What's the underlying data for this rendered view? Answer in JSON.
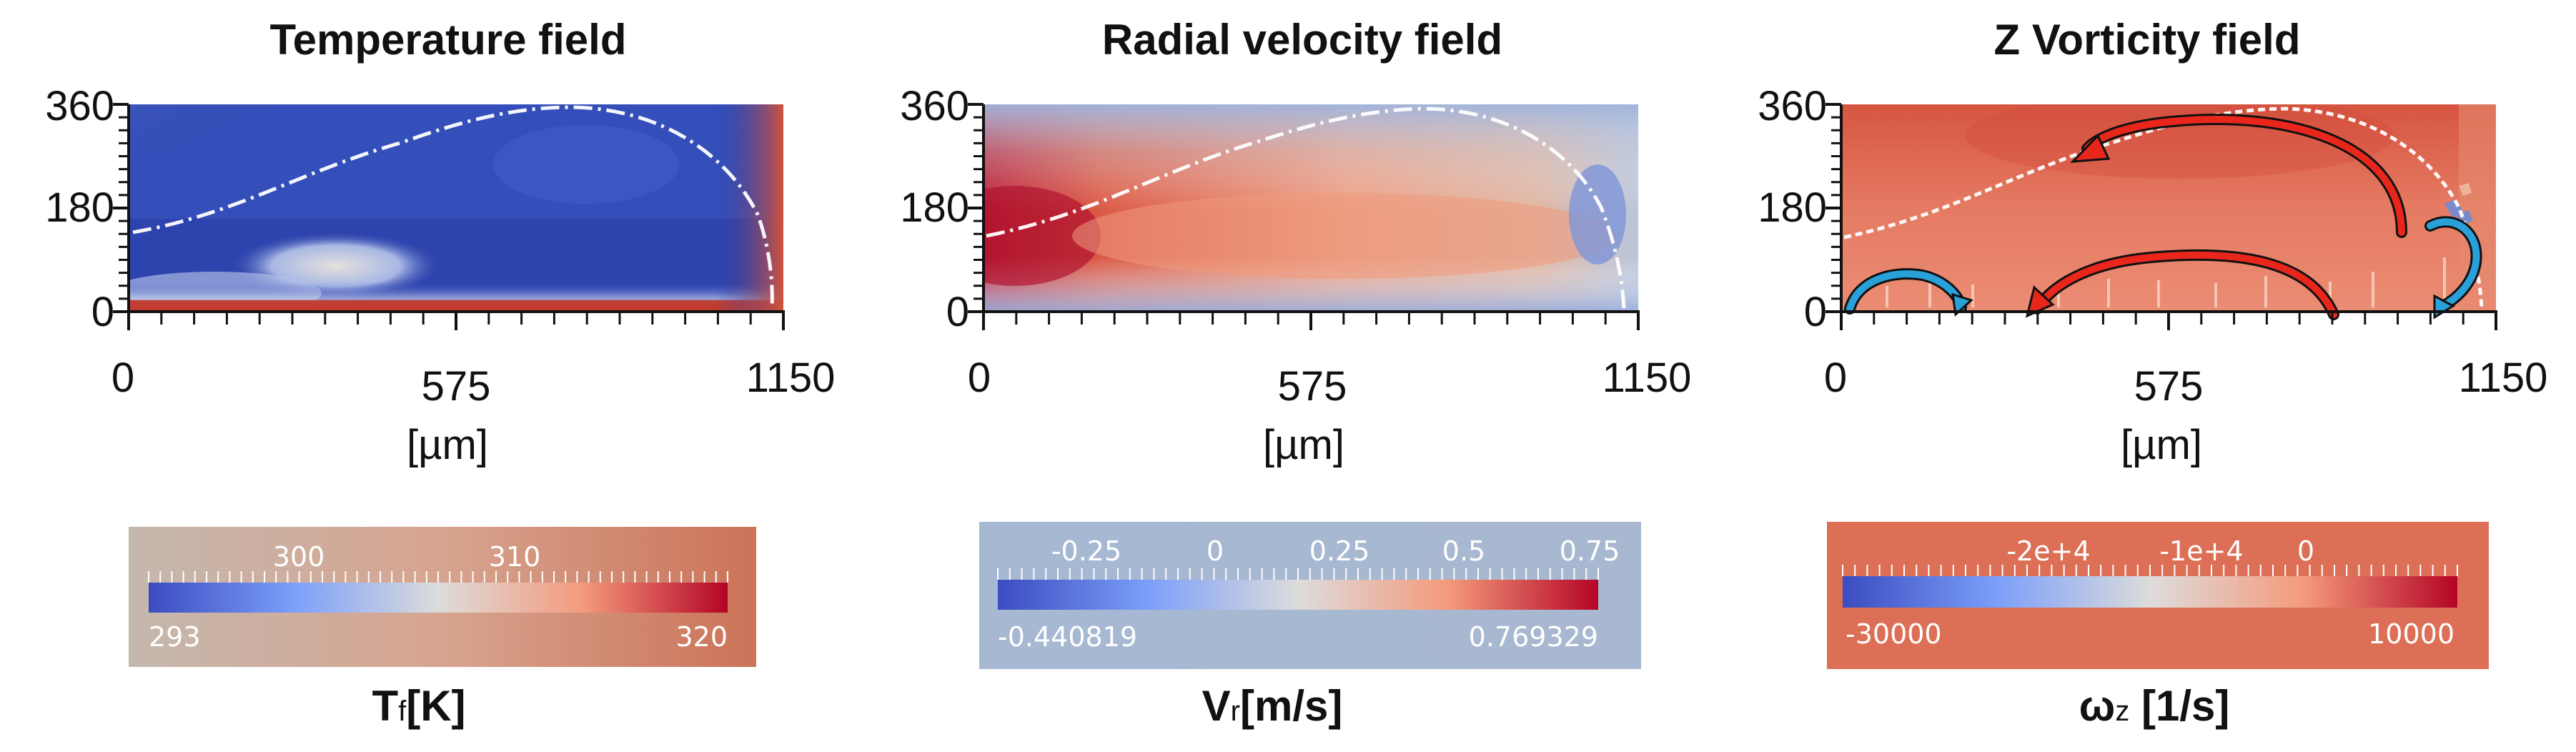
{
  "panels": [
    {
      "title": "Temperature field",
      "y_ticks": [
        "360",
        "180",
        "0"
      ],
      "x_ticks": [
        "0",
        "575",
        "1150"
      ],
      "x_unit": "[µm]",
      "colorbar": {
        "top_ticks": [
          "300",
          "310"
        ],
        "min_label": "293",
        "max_label": "320",
        "variable": "Tf",
        "variable_sub": "f",
        "unit": "[K]"
      },
      "colormap": {
        "low": "#3b4cc0",
        "mid": "#dddddd",
        "high": "#b40426"
      }
    },
    {
      "title": "Radial velocity field",
      "y_ticks": [
        "360",
        "180",
        "0"
      ],
      "x_ticks": [
        "0",
        "575",
        "1150"
      ],
      "x_unit": "[µm]",
      "colorbar": {
        "top_ticks": [
          "-0.25",
          "0",
          "0.25",
          "0.5",
          "0.75"
        ],
        "min_label": "-0.440819",
        "max_label": "0.769329",
        "variable": "Vr",
        "variable_sub": "r",
        "unit": "[m/s]"
      },
      "colormap": {
        "low": "#3b4cc0",
        "mid": "#dddddd",
        "high": "#b40426"
      }
    },
    {
      "title": "Z Vorticity  field",
      "y_ticks": [
        "360",
        "180",
        "0"
      ],
      "x_ticks": [
        "0",
        "575",
        "1150"
      ],
      "x_unit": "[µm]",
      "colorbar": {
        "top_ticks": [
          "-2e+4",
          "-1e+4",
          "0"
        ],
        "min_label": "-30000",
        "max_label": "10000",
        "variable": "ωz",
        "variable_sub": "z",
        "unit": "[1/s]"
      },
      "colormap": {
        "low": "#3b4cc0",
        "mid": "#dddddd",
        "high": "#b40426"
      }
    }
  ]
}
